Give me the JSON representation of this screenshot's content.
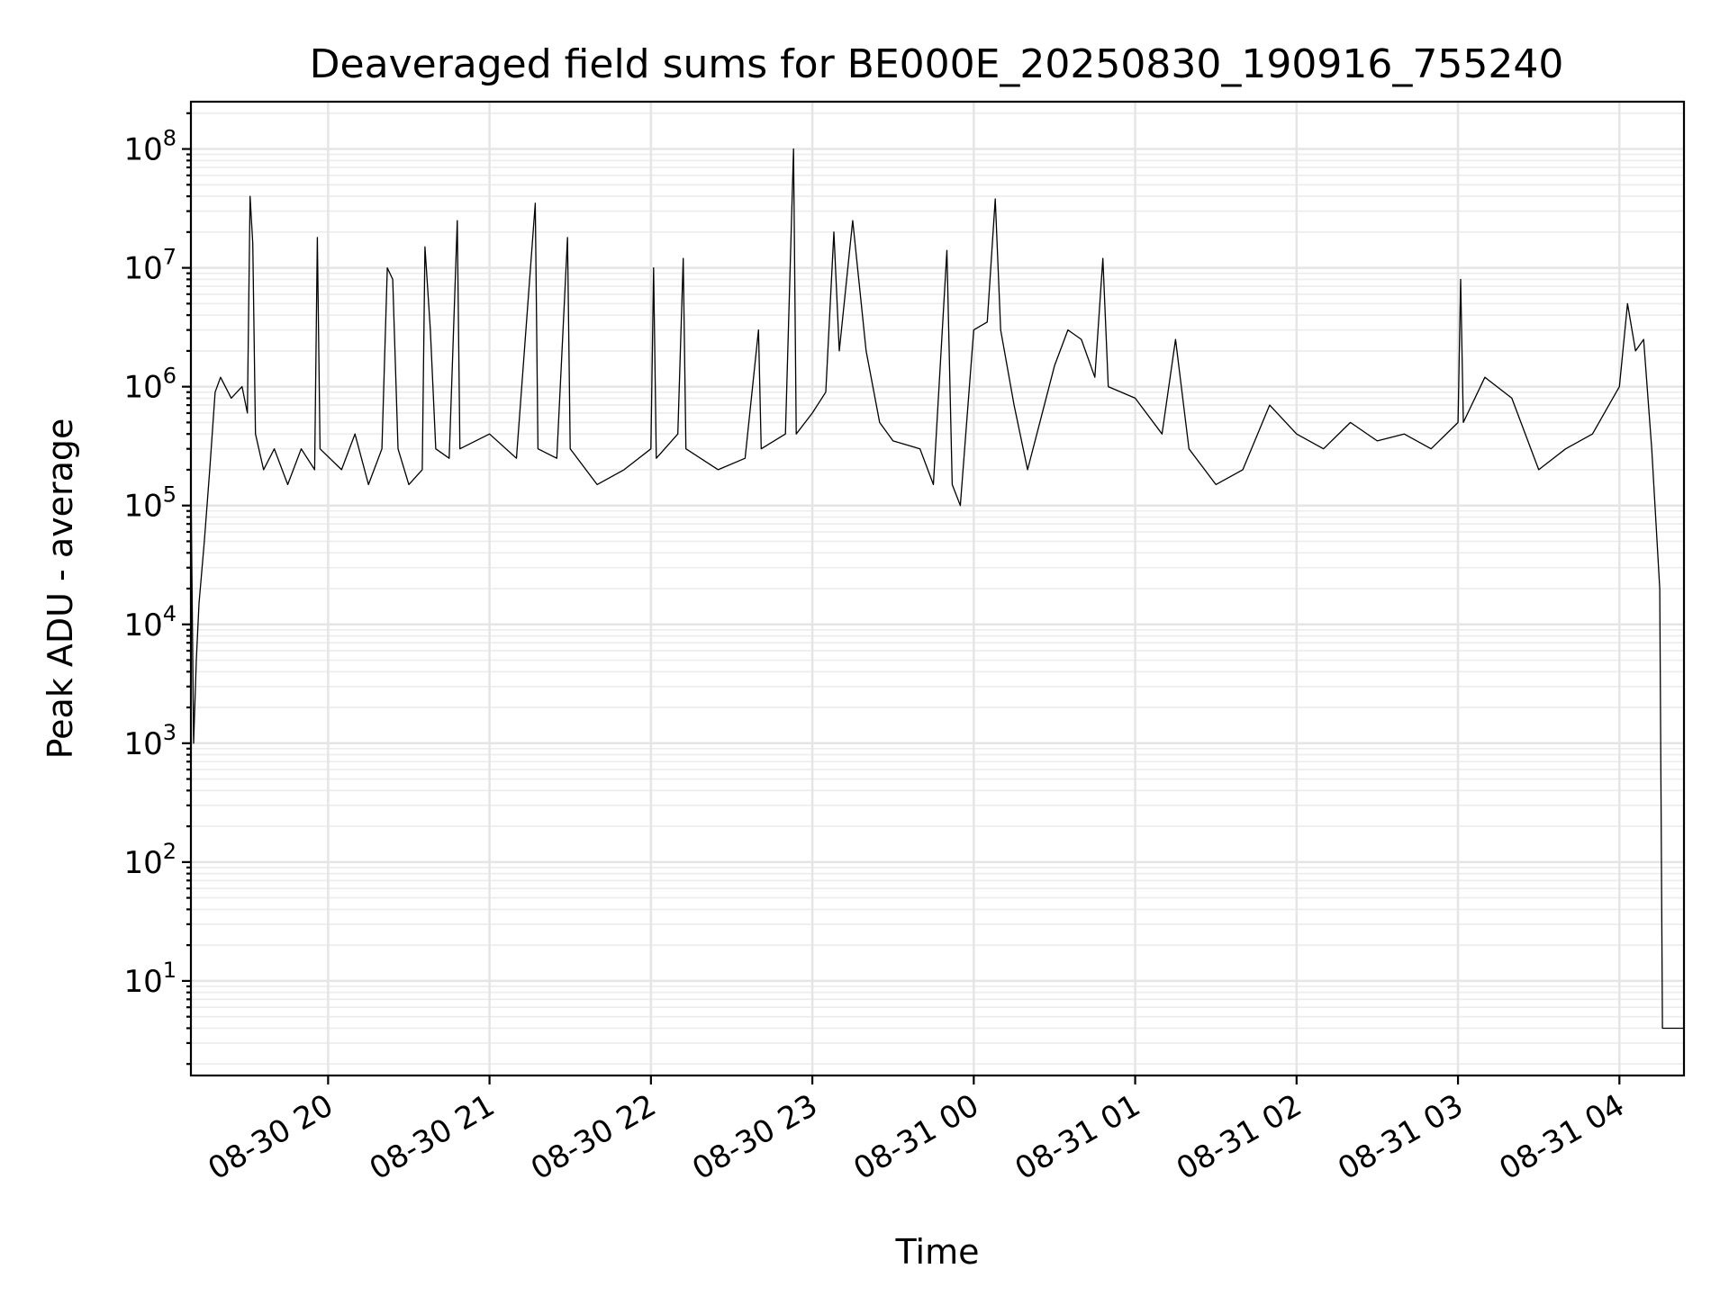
{
  "chart_data": {
    "type": "line",
    "title": "Deaveraged field sums for BE000E_20250830_190916_755240",
    "xlabel": "Time",
    "ylabel": "Peak ADU - average",
    "yscale": "log",
    "xlim": [
      "2025-08-30 19:09",
      "2025-08-31 04:24"
    ],
    "ylim": [
      1.6,
      250000000
    ],
    "grid": true,
    "x_ticks": [
      {
        "time": "2025-08-30 20:00",
        "label": "08-30 20"
      },
      {
        "time": "2025-08-30 21:00",
        "label": "08-30 21"
      },
      {
        "time": "2025-08-30 22:00",
        "label": "08-30 22"
      },
      {
        "time": "2025-08-30 23:00",
        "label": "08-30 23"
      },
      {
        "time": "2025-08-31 00:00",
        "label": "08-31 00"
      },
      {
        "time": "2025-08-31 01:00",
        "label": "08-31 01"
      },
      {
        "time": "2025-08-31 02:00",
        "label": "08-31 02"
      },
      {
        "time": "2025-08-31 03:00",
        "label": "08-31 03"
      },
      {
        "time": "2025-08-31 04:00",
        "label": "08-31 04"
      }
    ],
    "y_ticks": [
      {
        "value": 10,
        "base": "10",
        "exp": "1"
      },
      {
        "value": 100,
        "base": "10",
        "exp": "2"
      },
      {
        "value": 1000,
        "base": "10",
        "exp": "3"
      },
      {
        "value": 10000,
        "base": "10",
        "exp": "4"
      },
      {
        "value": 100000,
        "base": "10",
        "exp": "5"
      },
      {
        "value": 1000000,
        "base": "10",
        "exp": "6"
      },
      {
        "value": 10000000,
        "base": "10",
        "exp": "7"
      },
      {
        "value": 100000000,
        "base": "10",
        "exp": "8"
      }
    ],
    "series": [
      {
        "color": "#000000",
        "points": [
          [
            "2025-08-30 19:09",
            180000
          ],
          [
            "2025-08-30 19:10",
            1000
          ],
          [
            "2025-08-30 19:11",
            5000
          ],
          [
            "2025-08-30 19:12",
            15000
          ],
          [
            "2025-08-30 19:14",
            50000
          ],
          [
            "2025-08-30 19:16",
            200000
          ],
          [
            "2025-08-30 19:18",
            900000
          ],
          [
            "2025-08-30 19:20",
            1200000
          ],
          [
            "2025-08-30 19:24",
            800000
          ],
          [
            "2025-08-30 19:28",
            1000000
          ],
          [
            "2025-08-30 19:30",
            600000
          ],
          [
            "2025-08-30 19:31",
            40000000
          ],
          [
            "2025-08-30 19:32",
            16000000
          ],
          [
            "2025-08-30 19:33",
            400000
          ],
          [
            "2025-08-30 19:36",
            200000
          ],
          [
            "2025-08-30 19:40",
            300000
          ],
          [
            "2025-08-30 19:45",
            150000
          ],
          [
            "2025-08-30 19:50",
            300000
          ],
          [
            "2025-08-30 19:55",
            200000
          ],
          [
            "2025-08-30 19:56",
            18000000
          ],
          [
            "2025-08-30 19:57",
            300000
          ],
          [
            "2025-08-30 20:05",
            200000
          ],
          [
            "2025-08-30 20:10",
            400000
          ],
          [
            "2025-08-30 20:15",
            150000
          ],
          [
            "2025-08-30 20:20",
            300000
          ],
          [
            "2025-08-30 20:22",
            10000000
          ],
          [
            "2025-08-30 20:24",
            8000000
          ],
          [
            "2025-08-30 20:26",
            300000
          ],
          [
            "2025-08-30 20:30",
            150000
          ],
          [
            "2025-08-30 20:35",
            200000
          ],
          [
            "2025-08-30 20:36",
            15000000
          ],
          [
            "2025-08-30 20:38",
            3000000
          ],
          [
            "2025-08-30 20:40",
            300000
          ],
          [
            "2025-08-30 20:45",
            250000
          ],
          [
            "2025-08-30 20:48",
            25000000
          ],
          [
            "2025-08-30 20:49",
            300000
          ],
          [
            "2025-08-30 21:00",
            400000
          ],
          [
            "2025-08-30 21:10",
            250000
          ],
          [
            "2025-08-30 21:17",
            35000000
          ],
          [
            "2025-08-30 21:18",
            300000
          ],
          [
            "2025-08-30 21:25",
            250000
          ],
          [
            "2025-08-30 21:29",
            18000000
          ],
          [
            "2025-08-30 21:30",
            300000
          ],
          [
            "2025-08-30 21:40",
            150000
          ],
          [
            "2025-08-30 21:50",
            200000
          ],
          [
            "2025-08-30 22:00",
            300000
          ],
          [
            "2025-08-30 22:01",
            10000000
          ],
          [
            "2025-08-30 22:02",
            250000
          ],
          [
            "2025-08-30 22:10",
            400000
          ],
          [
            "2025-08-30 22:12",
            12000000
          ],
          [
            "2025-08-30 22:13",
            300000
          ],
          [
            "2025-08-30 22:25",
            200000
          ],
          [
            "2025-08-30 22:35",
            250000
          ],
          [
            "2025-08-30 22:40",
            3000000
          ],
          [
            "2025-08-30 22:41",
            300000
          ],
          [
            "2025-08-30 22:50",
            400000
          ],
          [
            "2025-08-30 22:53",
            100000000
          ],
          [
            "2025-08-30 22:54",
            400000
          ],
          [
            "2025-08-30 23:00",
            600000
          ],
          [
            "2025-08-30 23:05",
            900000
          ],
          [
            "2025-08-30 23:08",
            20000000
          ],
          [
            "2025-08-30 23:10",
            2000000
          ],
          [
            "2025-08-30 23:15",
            25000000
          ],
          [
            "2025-08-30 23:20",
            2000000
          ],
          [
            "2025-08-30 23:25",
            500000
          ],
          [
            "2025-08-30 23:30",
            350000
          ],
          [
            "2025-08-30 23:40",
            300000
          ],
          [
            "2025-08-30 23:45",
            150000
          ],
          [
            "2025-08-30 23:50",
            14000000
          ],
          [
            "2025-08-30 23:52",
            150000
          ],
          [
            "2025-08-30 23:55",
            100000
          ],
          [
            "2025-08-31 00:00",
            3000000
          ],
          [
            "2025-08-31 00:05",
            3500000
          ],
          [
            "2025-08-31 00:08",
            38000000
          ],
          [
            "2025-08-31 00:10",
            3000000
          ],
          [
            "2025-08-31 00:15",
            700000
          ],
          [
            "2025-08-31 00:20",
            200000
          ],
          [
            "2025-08-31 00:30",
            1500000
          ],
          [
            "2025-08-31 00:35",
            3000000
          ],
          [
            "2025-08-31 00:40",
            2500000
          ],
          [
            "2025-08-31 00:45",
            1200000
          ],
          [
            "2025-08-31 00:48",
            12000000
          ],
          [
            "2025-08-31 00:50",
            1000000
          ],
          [
            "2025-08-31 01:00",
            800000
          ],
          [
            "2025-08-31 01:10",
            400000
          ],
          [
            "2025-08-31 01:15",
            2500000
          ],
          [
            "2025-08-31 01:20",
            300000
          ],
          [
            "2025-08-31 01:30",
            150000
          ],
          [
            "2025-08-31 01:40",
            200000
          ],
          [
            "2025-08-31 01:50",
            700000
          ],
          [
            "2025-08-31 02:00",
            400000
          ],
          [
            "2025-08-31 02:10",
            300000
          ],
          [
            "2025-08-31 02:20",
            500000
          ],
          [
            "2025-08-31 02:30",
            350000
          ],
          [
            "2025-08-31 02:40",
            400000
          ],
          [
            "2025-08-31 02:50",
            300000
          ],
          [
            "2025-08-31 03:00",
            500000
          ],
          [
            "2025-08-31 03:01",
            8000000
          ],
          [
            "2025-08-31 03:02",
            500000
          ],
          [
            "2025-08-31 03:10",
            1200000
          ],
          [
            "2025-08-31 03:20",
            800000
          ],
          [
            "2025-08-31 03:30",
            200000
          ],
          [
            "2025-08-31 03:40",
            300000
          ],
          [
            "2025-08-31 03:50",
            400000
          ],
          [
            "2025-08-31 04:00",
            1000000
          ],
          [
            "2025-08-31 04:03",
            5000000
          ],
          [
            "2025-08-31 04:06",
            2000000
          ],
          [
            "2025-08-31 04:09",
            2500000
          ],
          [
            "2025-08-31 04:12",
            300000
          ],
          [
            "2025-08-31 04:14",
            50000
          ],
          [
            "2025-08-31 04:15",
            20000
          ],
          [
            "2025-08-31 04:16",
            4
          ],
          [
            "2025-08-31 04:24",
            4
          ]
        ]
      }
    ]
  }
}
